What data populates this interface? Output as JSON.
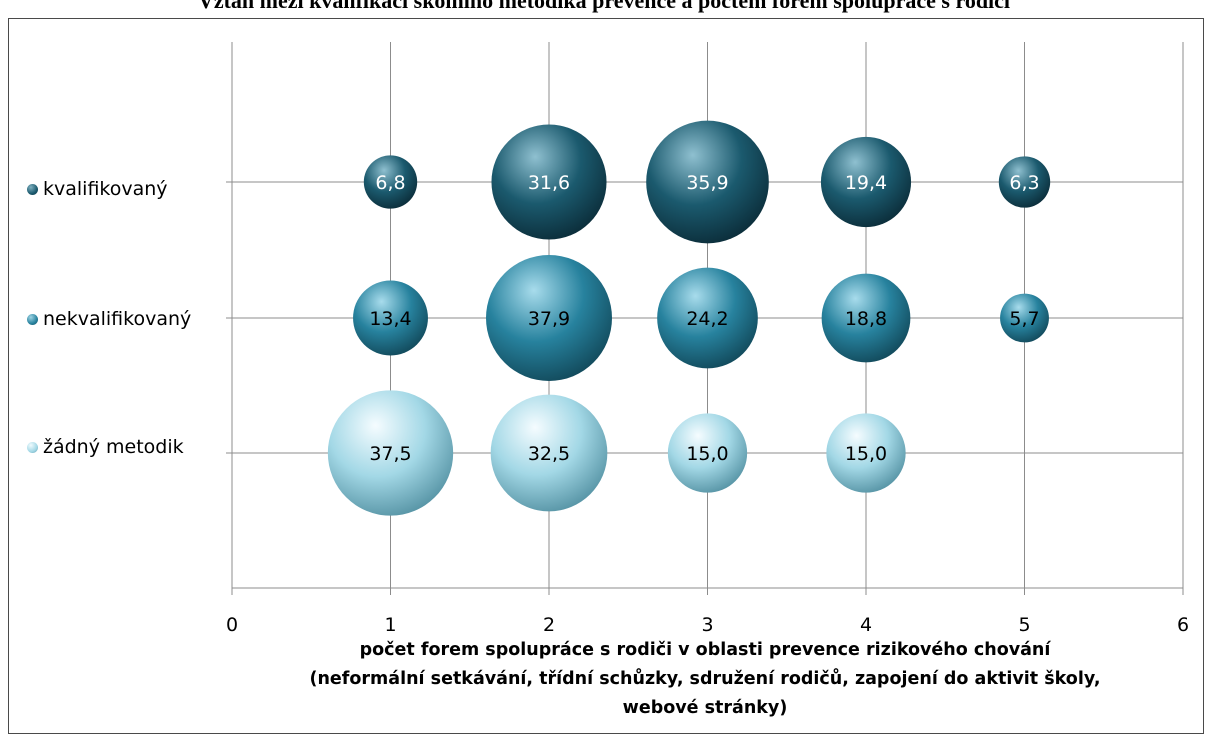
{
  "page": {
    "title": "Vztah mezi kvalifikací školního metodika prevence a počtem forem spolupráce s rodiči"
  },
  "chart_data": {
    "type": "bubble",
    "title": "",
    "xlabel_lines": [
      "počet forem spolupráce s rodiči v oblasti prevence rizikového chování",
      "(neformální setkávání, třídní schůzky, sdružení rodičů, zapojení do aktivit školy,",
      "webové stránky)"
    ],
    "xlim": [
      0,
      6
    ],
    "x_ticks": [
      "0",
      "1",
      "2",
      "3",
      "4",
      "5",
      "6"
    ],
    "grid": true,
    "legend_position": "left",
    "series": [
      {
        "name": "kvalifikovaný",
        "color": "#1b5a6e",
        "points": [
          {
            "x": 1,
            "value": 6.8,
            "label": "6,8"
          },
          {
            "x": 2,
            "value": 31.6,
            "label": "31,6"
          },
          {
            "x": 3,
            "value": 35.9,
            "label": "35,9"
          },
          {
            "x": 4,
            "value": 19.4,
            "label": "19,4"
          },
          {
            "x": 5,
            "value": 6.3,
            "label": "6,3"
          }
        ]
      },
      {
        "name": "nekvalifikovaný",
        "color": "#27829e",
        "points": [
          {
            "x": 1,
            "value": 13.4,
            "label": "13,4"
          },
          {
            "x": 2,
            "value": 37.9,
            "label": "37,9"
          },
          {
            "x": 3,
            "value": 24.2,
            "label": "24,2"
          },
          {
            "x": 4,
            "value": 18.8,
            "label": "18,8"
          },
          {
            "x": 5,
            "value": 5.7,
            "label": "5,7"
          }
        ]
      },
      {
        "name": "žádný metodik",
        "color": "#a3d8e6",
        "points": [
          {
            "x": 1,
            "value": 37.5,
            "label": "37,5"
          },
          {
            "x": 2,
            "value": 32.5,
            "label": "32,5"
          },
          {
            "x": 3,
            "value": 15.0,
            "label": "15,0"
          },
          {
            "x": 4,
            "value": 15.0,
            "label": "15,0"
          }
        ]
      }
    ]
  }
}
